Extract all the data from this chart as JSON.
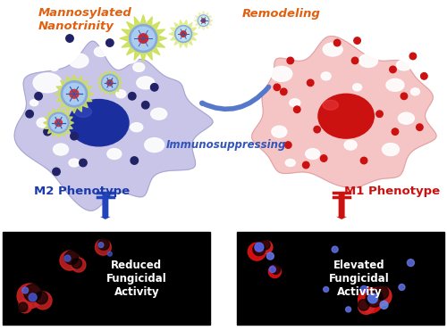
{
  "bg_color": "#ffffff",
  "m2_cell_color": "#c8c5e8",
  "m2_cell_edge": "#a8a5d0",
  "m2_nucleus_color": "#1a2e9e",
  "m2_nucleus_highlight": "#4455cc",
  "m1_cell_color": "#f5c5c5",
  "m1_cell_edge": "#e0a0a0",
  "m1_nucleus_color": "#cc1111",
  "m1_nucleus_highlight": "#ee4444",
  "m2_label": "M2 Phenotype",
  "m1_label": "M1 Phenotype",
  "m2_label_color": "#1a3aaa",
  "m1_label_color": "#cc1111",
  "nanotrinity_label": "Mannosylated\nNanotrinity",
  "nanotrinity_color": "#e06010",
  "remodeling_label": "Remodeling",
  "remodeling_color": "#e06010",
  "immunosuppressing_label": "Immunosuppressing",
  "immunosuppressing_color": "#3355bb",
  "arrow_color": "#5577cc",
  "m2_box_label": "Reduced\nFungicidal\nActivity",
  "m1_box_label": "Elevated\nFungicidal\nActivity",
  "box_text_color": "#ffffff",
  "blue_arrow_color": "#2244bb",
  "red_arrow_color": "#cc1111",
  "nano_outer_color": "#ddee88",
  "nano_inner_color": "#aaddff",
  "nano_spike_color": "#88aadd",
  "nano_dot_color": "#dd3333"
}
